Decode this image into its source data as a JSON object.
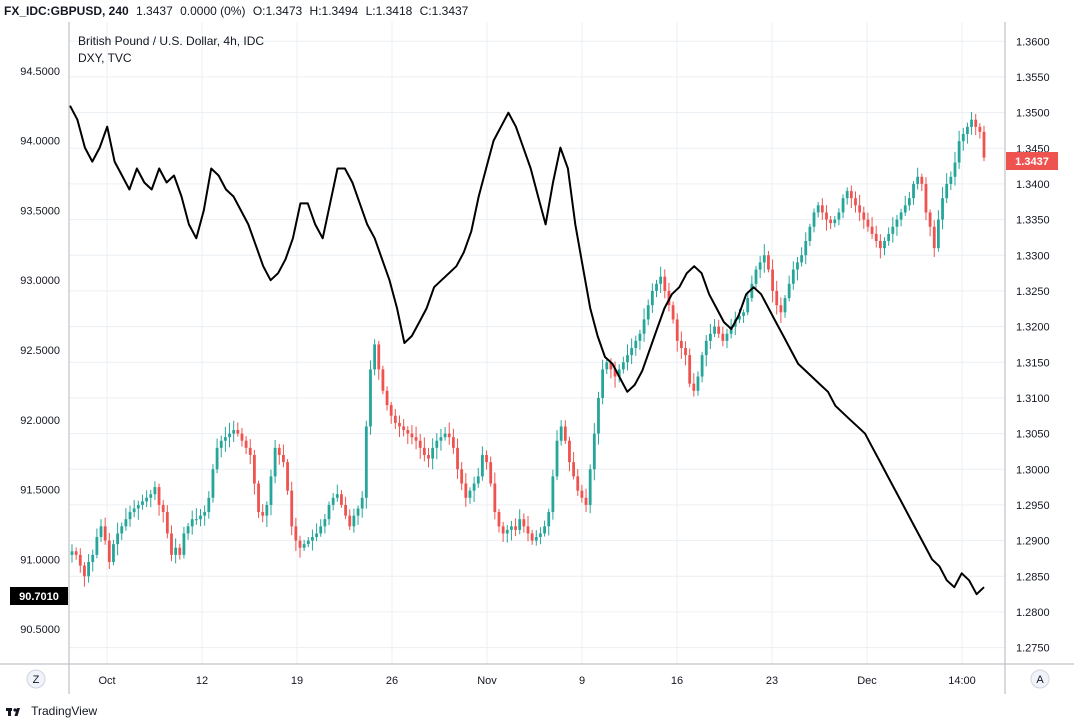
{
  "header": {
    "symbol": "FX_IDC:GBPUSD, 240",
    "last": "1.3437",
    "change": "0.0000 (0%)",
    "open": "O:1.3473",
    "high": "H:1.3494",
    "low": "L:1.3418",
    "close": "C:1.3437"
  },
  "legend": {
    "main_series": "British Pound / U.S. Dollar, 4h, IDC",
    "overlay_series": "DXY, TVC"
  },
  "badges": {
    "right_price": "1.3437",
    "left_price": "90.7010"
  },
  "buttons": {
    "zoom": "Z",
    "auto": "A"
  },
  "footer": {
    "brand": "TradingView"
  },
  "colors": {
    "up": "#26a69a",
    "down": "#ef5350",
    "dxy_line": "#000000",
    "grid": "#eceff2",
    "right_badge": "#ef5350",
    "left_badge": "#000000"
  },
  "chart_data": {
    "type": "line",
    "title": "British Pound / U.S. Dollar, 4h, IDC",
    "x_tick_labels": [
      "Oct",
      "12",
      "19",
      "26",
      "Nov",
      "9",
      "16",
      "23",
      "Dec",
      "14:00"
    ],
    "left_axis": {
      "label": "DXY, TVC",
      "range": [
        90.25,
        94.85
      ],
      "ticks": [
        "90.5000",
        "91.0000",
        "91.5000",
        "92.0000",
        "92.5000",
        "93.0000",
        "93.5000",
        "94.0000",
        "94.5000"
      ]
    },
    "right_axis": {
      "label": "GBPUSD",
      "range": [
        1.2727,
        1.3627
      ],
      "ticks": [
        "1.2750",
        "1.2800",
        "1.2850",
        "1.2900",
        "1.2950",
        "1.3000",
        "1.3050",
        "1.3100",
        "1.3150",
        "1.3200",
        "1.3250",
        "1.3300",
        "1.3350",
        "1.3400",
        "1.3450",
        "1.3500",
        "1.3550",
        "1.3600"
      ]
    },
    "series": [
      {
        "name": "British Pound / U.S. Dollar, 4h, IDC",
        "style": "candlestick",
        "axis": "right",
        "values": [
          1.2885,
          1.288,
          1.2865,
          1.285,
          1.287,
          1.288,
          1.2905,
          1.292,
          1.29,
          1.287,
          1.2895,
          1.291,
          1.292,
          1.293,
          1.294,
          1.2945,
          1.295,
          1.2955,
          1.296,
          1.2965,
          1.2975,
          1.295,
          1.294,
          1.291,
          1.288,
          1.289,
          1.288,
          1.291,
          1.292,
          1.293,
          1.293,
          1.2935,
          1.294,
          1.296,
          1.3,
          1.303,
          1.304,
          1.3045,
          1.305,
          1.3055,
          1.305,
          1.304,
          1.303,
          1.302,
          1.298,
          1.294,
          1.2935,
          1.295,
          1.299,
          1.303,
          1.302,
          1.301,
          1.297,
          1.292,
          1.29,
          1.289,
          1.2895,
          1.29,
          1.2905,
          1.291,
          1.292,
          1.293,
          1.295,
          1.296,
          1.2965,
          1.295,
          1.2935,
          1.292,
          1.2935,
          1.2945,
          1.296,
          1.306,
          1.314,
          1.3175,
          1.314,
          1.311,
          1.309,
          1.3075,
          1.3065,
          1.306,
          1.3055,
          1.305,
          1.3045,
          1.304,
          1.303,
          1.302,
          1.3015,
          1.303,
          1.304,
          1.3045,
          1.305,
          1.3045,
          1.303,
          1.3,
          1.298,
          1.296,
          1.297,
          1.298,
          1.299,
          1.302,
          1.301,
          1.298,
          1.294,
          1.292,
          1.291,
          1.2915,
          1.292,
          1.2915,
          1.293,
          1.292,
          1.291,
          1.29,
          1.2905,
          1.291,
          1.292,
          1.294,
          1.299,
          1.304,
          1.306,
          1.304,
          1.301,
          1.299,
          1.297,
          1.296,
          1.295,
          1.3,
          1.305,
          1.31,
          1.314,
          1.315,
          1.314,
          1.313,
          1.314,
          1.315,
          1.316,
          1.317,
          1.318,
          1.319,
          1.321,
          1.323,
          1.325,
          1.326,
          1.327,
          1.325,
          1.323,
          1.321,
          1.318,
          1.317,
          1.316,
          1.312,
          1.311,
          1.313,
          1.316,
          1.318,
          1.319,
          1.32,
          1.319,
          1.318,
          1.319,
          1.32,
          1.321,
          1.3215,
          1.322,
          1.324,
          1.326,
          1.328,
          1.329,
          1.33,
          1.328,
          1.325,
          1.323,
          1.322,
          1.324,
          1.326,
          1.328,
          1.329,
          1.33,
          1.332,
          1.334,
          1.336,
          1.337,
          1.336,
          1.335,
          1.3345,
          1.335,
          1.336,
          1.338,
          1.339,
          1.338,
          1.337,
          1.336,
          1.335,
          1.334,
          1.333,
          1.332,
          1.331,
          1.332,
          1.333,
          1.334,
          1.335,
          1.336,
          1.337,
          1.338,
          1.34,
          1.341,
          1.34,
          1.336,
          1.334,
          1.331,
          1.335,
          1.338,
          1.34,
          1.341,
          1.343,
          1.346,
          1.347,
          1.348,
          1.349,
          1.348,
          1.3473,
          1.3437
        ]
      },
      {
        "name": "DXY, TVC",
        "style": "line",
        "axis": "left",
        "values": [
          94.25,
          94.15,
          93.95,
          93.85,
          93.95,
          94.1,
          93.85,
          93.75,
          93.65,
          93.8,
          93.7,
          93.65,
          93.8,
          93.7,
          93.75,
          93.6,
          93.4,
          93.3,
          93.5,
          93.8,
          93.75,
          93.65,
          93.6,
          93.5,
          93.4,
          93.25,
          93.1,
          93.0,
          93.05,
          93.15,
          93.3,
          93.55,
          93.55,
          93.4,
          93.3,
          93.55,
          93.8,
          93.8,
          93.7,
          93.55,
          93.4,
          93.3,
          93.15,
          93.0,
          92.8,
          92.55,
          92.6,
          92.7,
          92.8,
          92.95,
          93.0,
          93.05,
          93.1,
          93.2,
          93.35,
          93.6,
          93.8,
          94.0,
          94.1,
          94.2,
          94.1,
          93.95,
          93.8,
          93.6,
          93.4,
          93.7,
          93.95,
          93.8,
          93.4,
          93.1,
          92.8,
          92.6,
          92.45,
          92.4,
          92.3,
          92.2,
          92.25,
          92.35,
          92.5,
          92.65,
          92.8,
          92.9,
          92.95,
          93.05,
          93.1,
          93.05,
          92.9,
          92.8,
          92.7,
          92.65,
          92.75,
          92.9,
          92.95,
          92.9,
          92.8,
          92.7,
          92.6,
          92.5,
          92.4,
          92.35,
          92.3,
          92.25,
          92.2,
          92.1,
          92.05,
          92.0,
          91.95,
          91.9,
          91.8,
          91.7,
          91.6,
          91.5,
          91.4,
          91.3,
          91.2,
          91.1,
          91.0,
          90.95,
          90.85,
          90.8,
          90.9,
          90.85,
          90.75,
          90.8
        ]
      }
    ],
    "grid": true,
    "legend_position": "top-left"
  }
}
